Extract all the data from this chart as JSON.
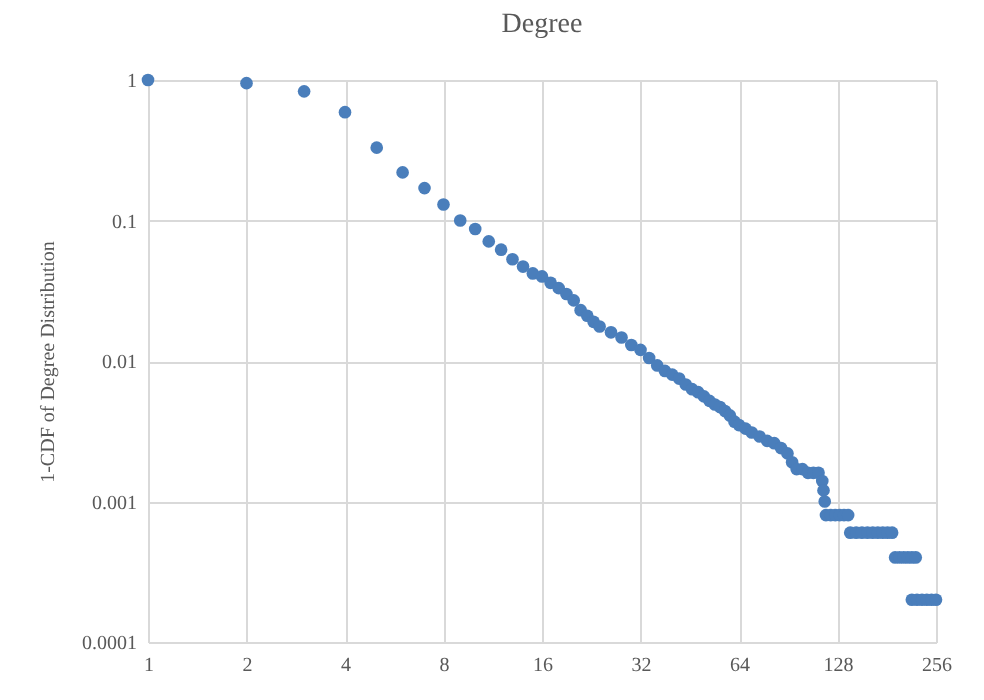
{
  "chart_data": {
    "type": "scatter",
    "title": "Degree",
    "ylabel": "1-CDF of Degree  Distribution",
    "log": "xy",
    "grid": true,
    "marker": "circle",
    "legend": false,
    "xlim": [
      1,
      256
    ],
    "xticks": [
      1,
      2,
      4,
      8,
      16,
      32,
      64,
      128,
      256
    ],
    "ylim": [
      0.0001,
      1
    ],
    "yticks": [
      0.0001,
      0.001,
      0.01,
      0.1,
      1
    ],
    "series": [
      {
        "color": "#4a7ebb",
        "x": [
          1,
          2,
          3,
          4,
          5,
          6,
          7,
          8,
          9,
          10,
          11,
          12,
          13,
          14,
          15,
          16,
          17,
          18,
          19,
          20,
          21,
          22,
          23,
          24,
          26,
          28,
          30,
          32,
          34,
          36,
          38,
          40,
          42,
          44,
          46,
          48,
          50,
          52,
          54,
          56,
          58,
          60,
          62,
          64,
          67,
          70,
          74,
          78,
          82,
          86,
          90,
          93,
          96,
          100,
          104,
          108,
          112,
          115,
          116,
          117,
          118,
          122,
          126,
          130,
          134,
          138,
          140,
          146,
          152,
          158,
          164,
          170,
          176,
          182,
          188,
          192,
          198,
          204,
          210,
          216,
          222,
          216,
          224,
          232,
          240,
          248,
          256
        ],
        "values": [
          1,
          0.95,
          0.83,
          0.59,
          0.33,
          0.22,
          0.17,
          0.13,
          0.1,
          0.087,
          0.071,
          0.062,
          0.053,
          0.047,
          0.042,
          0.04,
          0.036,
          0.033,
          0.03,
          0.027,
          0.023,
          0.021,
          0.019,
          0.0176,
          0.016,
          0.0147,
          0.013,
          0.012,
          0.0105,
          0.0093,
          0.0085,
          0.008,
          0.0075,
          0.0068,
          0.0063,
          0.006,
          0.0056,
          0.0052,
          0.0049,
          0.0047,
          0.0044,
          0.0041,
          0.0037,
          0.0035,
          0.0033,
          0.0031,
          0.0029,
          0.0027,
          0.0026,
          0.0024,
          0.0022,
          0.0019,
          0.0017,
          0.0017,
          0.0016,
          0.0016,
          0.0016,
          0.0014,
          0.0012,
          0.001,
          0.0008,
          0.0008,
          0.0008,
          0.0008,
          0.0008,
          0.0008,
          0.0006,
          0.0006,
          0.0006,
          0.0006,
          0.0006,
          0.0006,
          0.0006,
          0.0006,
          0.0006,
          0.0004,
          0.0004,
          0.0004,
          0.0004,
          0.0004,
          0.0004,
          0.0002,
          0.0002,
          0.0002,
          0.0002,
          0.0002,
          0.0002
        ]
      }
    ]
  }
}
